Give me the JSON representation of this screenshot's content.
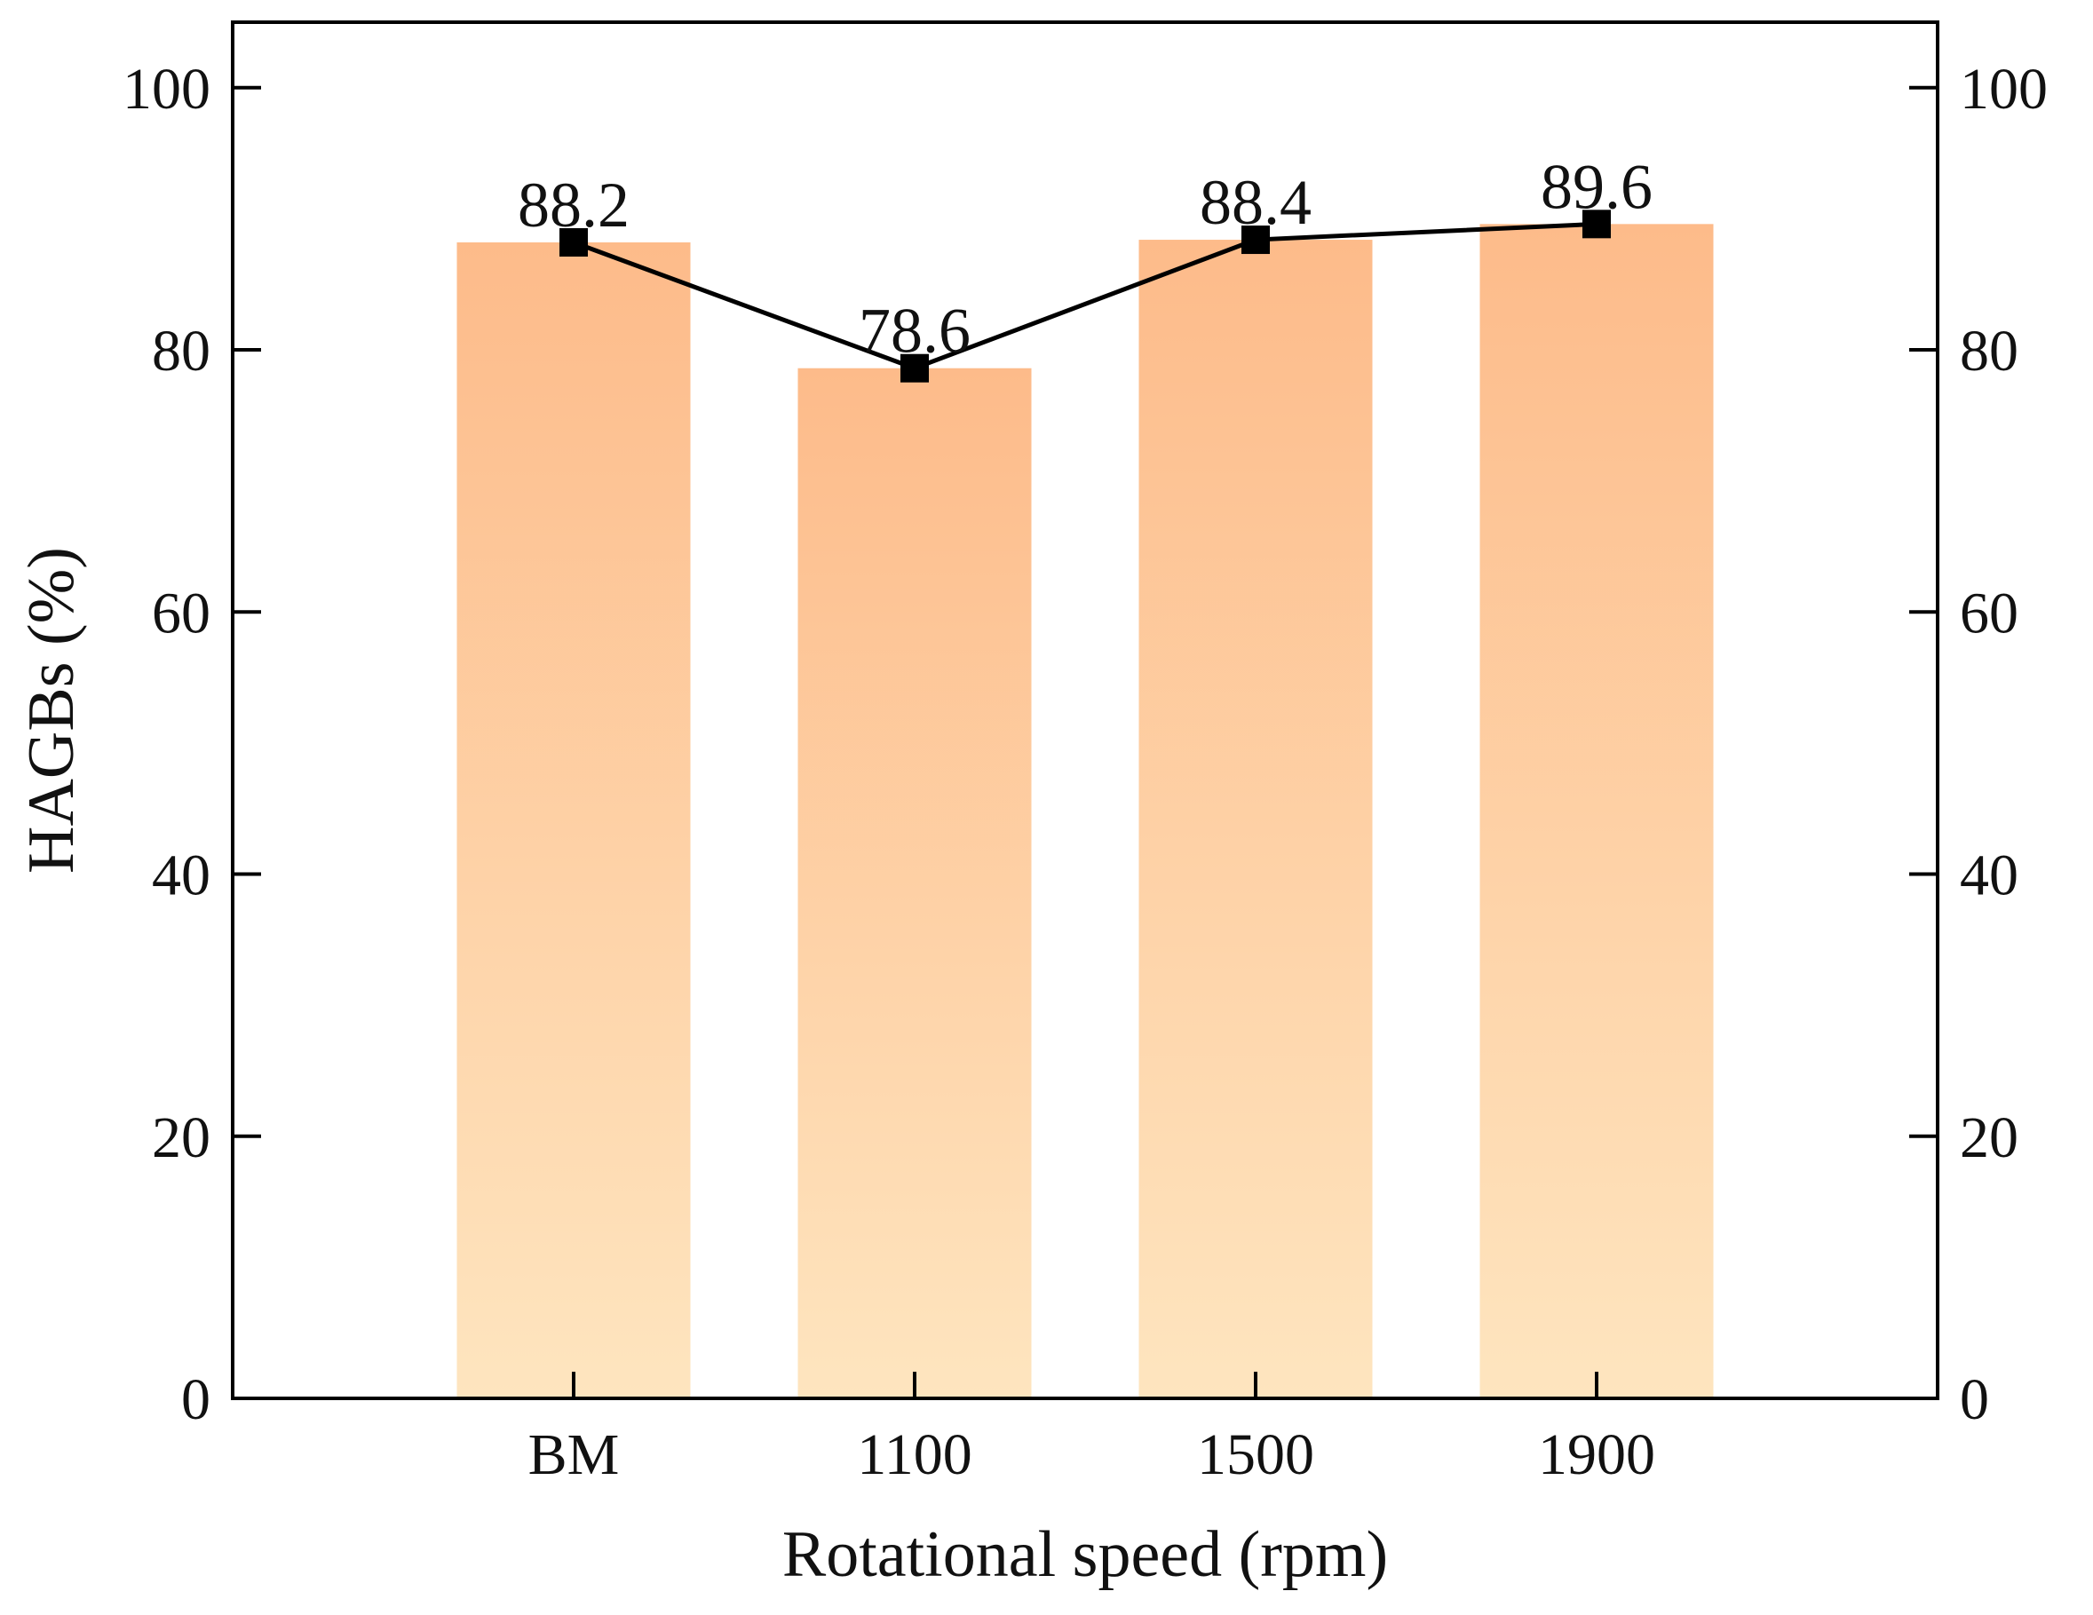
{
  "chart_data": {
    "type": "bar",
    "categories": [
      "BM",
      "1100",
      "1500",
      "1900"
    ],
    "values": [
      88.2,
      78.6,
      88.4,
      89.6
    ],
    "value_labels": [
      "88.2",
      "78.6",
      "88.4",
      "89.6"
    ],
    "overlay": {
      "type": "line",
      "marker": "square",
      "values": [
        88.2,
        78.6,
        88.4,
        89.6
      ]
    },
    "title": "",
    "xlabel": "Rotational speed (rpm)",
    "ylabel": "HAGBs (%)",
    "ylim": [
      0,
      105
    ],
    "yticks": [
      0,
      20,
      40,
      60,
      80,
      100
    ],
    "ytick_labels": [
      "0",
      "20",
      "40",
      "60",
      "80",
      "100"
    ],
    "right_axis_mirror": true,
    "grid": false,
    "legend": "none"
  },
  "colors": {
    "bar_top": "#fdbb8a",
    "bar_bottom": "#fee5bf",
    "line": "#000000",
    "marker": "#000000",
    "axis": "#000000"
  }
}
